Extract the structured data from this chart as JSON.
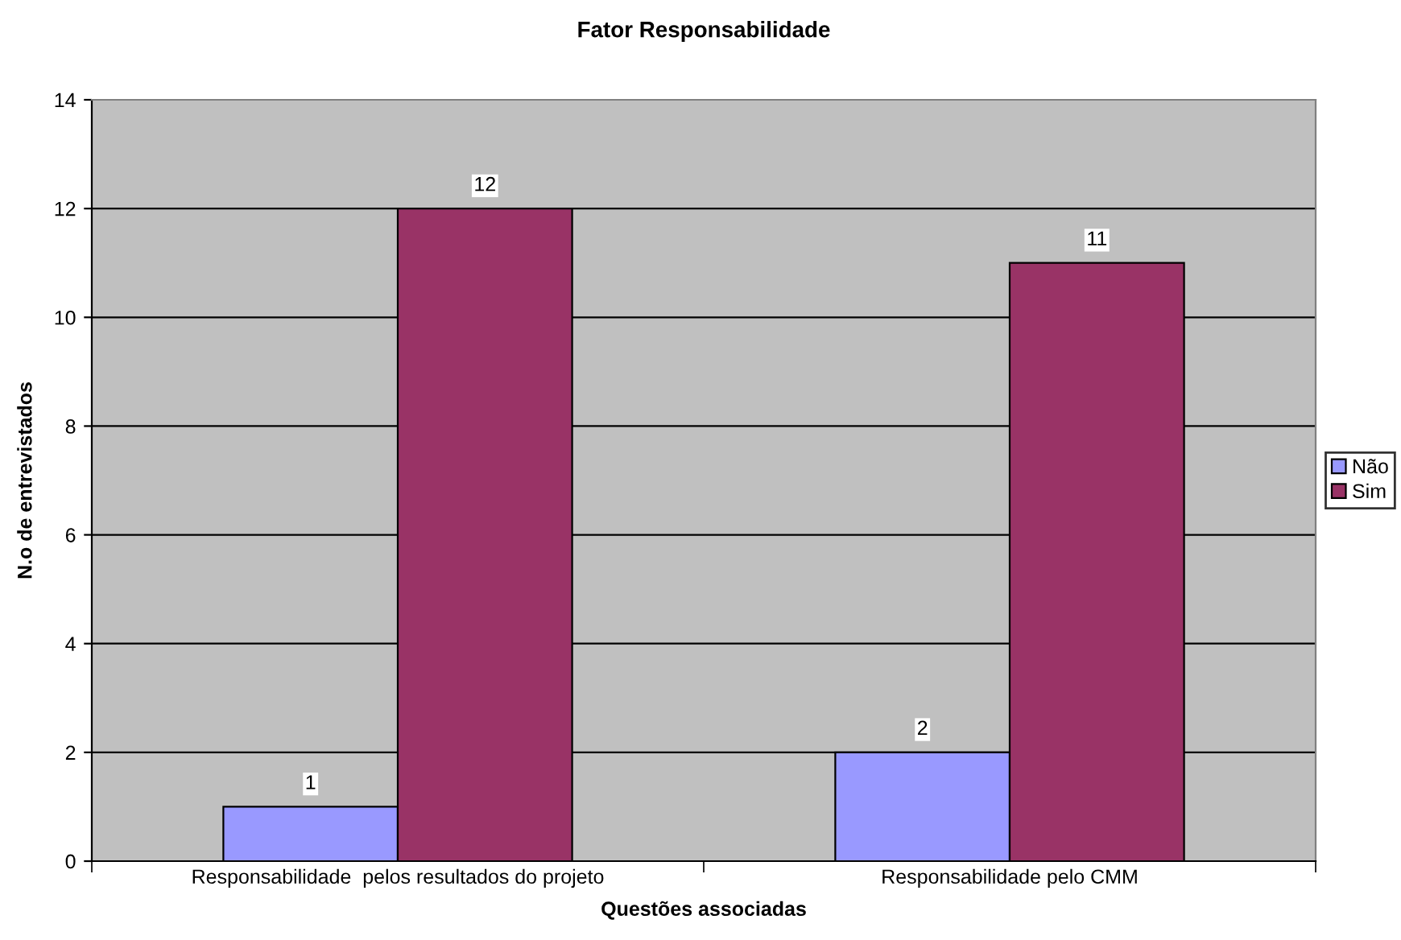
{
  "chart_data": {
    "type": "bar",
    "title": "Fator Responsabilidade",
    "xlabel": "Questões associadas",
    "ylabel": "N.o de entrevistados",
    "categories": [
      "Responsabilidade  pelos resultados do projeto",
      "Responsabilidade pelo CMM"
    ],
    "series": [
      {
        "name": "Não",
        "color": "#9999ff",
        "values": [
          1,
          2
        ]
      },
      {
        "name": "Sim",
        "color": "#993366",
        "values": [
          12,
          11
        ]
      }
    ],
    "ylim": [
      0,
      14
    ],
    "yticks": [
      0,
      2,
      4,
      6,
      8,
      10,
      12,
      14
    ],
    "grid": "y",
    "legend": "right",
    "data_labels": true
  }
}
